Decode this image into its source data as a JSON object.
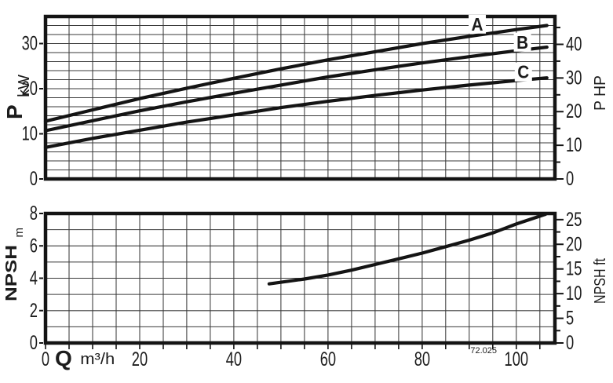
{
  "figure_code": "72.025",
  "chart_data": [
    {
      "type": "line",
      "id": "power-chart",
      "title": "",
      "xlabel": "Q m³/h",
      "ylabel_left": "P kW",
      "ylabel_left_main": "P",
      "ylabel_left_unit": "kW",
      "ylabel_right": "P HP",
      "xlim": [
        0,
        108.2
      ],
      "ylim": [
        0,
        36
      ],
      "x_major_ticks": [
        0,
        20,
        40,
        60,
        80,
        100
      ],
      "x_minor_step": 5,
      "y_ticks_left": [
        0,
        10,
        20,
        30
      ],
      "y_minor_step": 2,
      "grid": "on",
      "legend": "labels-on-curves",
      "right_axis": {
        "label": "P HP",
        "unit": "HP",
        "labeled_ticks": [
          0,
          10,
          20,
          30,
          40
        ],
        "minor_step": 5,
        "convert_to_left": 0.7457
      },
      "series": [
        {
          "name": "A",
          "x": [
            0,
            10,
            20,
            30,
            40,
            50,
            60,
            70,
            80,
            90,
            100,
            106.5
          ],
          "y": [
            12.8,
            15.3,
            17.8,
            20.1,
            22.3,
            24.4,
            26.4,
            28.2,
            30.0,
            31.6,
            33.1,
            34.0
          ],
          "label_at": [
            91.7,
            34.3
          ]
        },
        {
          "name": "B",
          "x": [
            0,
            10,
            20,
            30,
            40,
            50,
            60,
            70,
            80,
            90,
            100,
            106.5
          ],
          "y": [
            10.7,
            12.9,
            15.1,
            17.1,
            19.0,
            20.8,
            22.6,
            24.2,
            25.7,
            27.1,
            28.4,
            29.2
          ],
          "label_at": [
            101.3,
            30.3
          ]
        },
        {
          "name": "C",
          "x": [
            0,
            10,
            20,
            30,
            40,
            50,
            60,
            70,
            80,
            90,
            100,
            106.5
          ],
          "y": [
            7.0,
            9.0,
            10.8,
            12.6,
            14.2,
            15.8,
            17.2,
            18.5,
            19.7,
            20.8,
            21.8,
            22.4
          ],
          "label_at": [
            101.5,
            23.7
          ]
        }
      ]
    },
    {
      "type": "line",
      "id": "npsh-chart",
      "title": "",
      "xlabel": "Q m³/h",
      "xlabel_main": "Q",
      "xlabel_unit": "m³/h",
      "ylabel_left": "NPSH m",
      "ylabel_left_main": "NPSH",
      "ylabel_left_unit": "m",
      "ylabel_right": "NPSH ft",
      "xlim": [
        0,
        108.2
      ],
      "ylim": [
        0,
        8
      ],
      "x_major_ticks": [
        0,
        20,
        40,
        60,
        80,
        100
      ],
      "x_minor_step": 5,
      "y_ticks_left": [
        0,
        2,
        4,
        6,
        8
      ],
      "y_minor_step": 1,
      "grid": "on",
      "legend": "none",
      "right_axis": {
        "label": "NPSH ft",
        "unit": "ft",
        "labeled_ticks": [
          0,
          5,
          10,
          15,
          20,
          25
        ],
        "minor_step": 2.5,
        "convert_to_left": 0.3048
      },
      "series": [
        {
          "name": "NPSH",
          "x": [
            47.5,
            55,
            60,
            65,
            70,
            75,
            80,
            85,
            90,
            95,
            100,
            106.2
          ],
          "y": [
            3.65,
            3.95,
            4.2,
            4.5,
            4.85,
            5.2,
            5.55,
            5.95,
            6.35,
            6.8,
            7.35,
            7.95
          ]
        }
      ]
    }
  ]
}
